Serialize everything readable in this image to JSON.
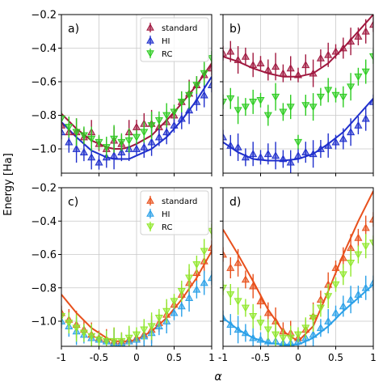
{
  "figure": {
    "ylabel": "Energy [Ha]",
    "xlabel": "α",
    "x_ticks": [
      -1,
      -0.5,
      0,
      0.5,
      1
    ],
    "x_tick_labels": [
      "-1",
      "-0.5",
      "0",
      "0.5",
      "1"
    ],
    "y_ticks": [
      -1.0,
      -0.8,
      -0.6,
      -0.4,
      -0.2
    ],
    "y_tick_labels": [
      "−1.0",
      "−0.8",
      "−0.6",
      "−0.4",
      "−0.2"
    ],
    "colors": {
      "top_standard": "#a0183f",
      "top_HI": "#1f2fcc",
      "top_RC": "#2bcc1f",
      "bottom_standard": "#e8501c",
      "bottom_HI": "#2aa0e8",
      "bottom_RC": "#8fe82a"
    }
  },
  "chart_data": [
    {
      "type": "scatter",
      "panel_label": "a)",
      "xlim": [
        -1,
        1
      ],
      "ylim": [
        -1.1,
        -0.2
      ],
      "grid": true,
      "legend": "top-right",
      "series": [
        {
          "name": "standard",
          "kind": "points",
          "marker": "triangle-up",
          "color": "#a0183f",
          "x": [
            -1.0,
            -0.9,
            -0.8,
            -0.7,
            -0.6,
            -0.5,
            -0.4,
            -0.3,
            -0.2,
            -0.1,
            0.0,
            0.1,
            0.2,
            0.3,
            0.4,
            0.5,
            0.6,
            0.7,
            0.8,
            0.9,
            1.0
          ],
          "y": [
            -0.86,
            -0.9,
            -0.9,
            -0.93,
            -0.9,
            -0.97,
            -1.0,
            -0.95,
            -0.97,
            -0.9,
            -0.87,
            -0.85,
            -0.85,
            -0.87,
            -0.84,
            -0.8,
            -0.72,
            -0.67,
            -0.62,
            -0.56,
            -0.52
          ]
        },
        {
          "name": "HI",
          "kind": "points",
          "marker": "triangle-up",
          "color": "#1f2fcc",
          "x": [
            -1.0,
            -0.9,
            -0.8,
            -0.7,
            -0.6,
            -0.5,
            -0.4,
            -0.3,
            -0.2,
            -0.1,
            0.0,
            0.1,
            0.2,
            0.3,
            0.4,
            0.5,
            0.6,
            0.7,
            0.8,
            0.9,
            1.0
          ],
          "y": [
            -0.9,
            -0.96,
            -1.0,
            -1.02,
            -1.05,
            -1.08,
            -1.05,
            -1.04,
            -1.02,
            -1.0,
            -1.0,
            -0.99,
            -0.96,
            -0.93,
            -0.9,
            -0.86,
            -0.82,
            -0.77,
            -0.72,
            -0.68,
            -0.62
          ]
        },
        {
          "name": "RC",
          "kind": "points",
          "marker": "triangle-down",
          "color": "#2bcc1f",
          "x": [
            -1.0,
            -0.9,
            -0.8,
            -0.7,
            -0.6,
            -0.5,
            -0.4,
            -0.3,
            -0.2,
            -0.1,
            0.0,
            0.1,
            0.2,
            0.3,
            0.4,
            0.5,
            0.6,
            0.7,
            0.8,
            0.9,
            1.0
          ],
          "y": [
            -0.82,
            -0.87,
            -0.9,
            -0.92,
            -0.94,
            -0.96,
            -0.99,
            -0.94,
            -0.96,
            -0.95,
            -0.93,
            -0.9,
            -0.86,
            -0.83,
            -0.8,
            -0.78,
            -0.72,
            -0.68,
            -0.62,
            -0.55,
            -0.46
          ]
        },
        {
          "kind": "line",
          "color": "#a0183f",
          "x": [
            -1.0,
            -0.8,
            -0.6,
            -0.4,
            -0.3,
            -0.2,
            -0.1,
            0.0,
            0.2,
            0.4,
            0.6,
            0.8,
            1.0
          ],
          "y": [
            -0.79,
            -0.88,
            -0.95,
            -0.99,
            -1.0,
            -1.0,
            -0.99,
            -0.97,
            -0.92,
            -0.83,
            -0.73,
            -0.62,
            -0.49
          ]
        },
        {
          "kind": "line",
          "color": "#1f2fcc",
          "x": [
            -1.0,
            -0.8,
            -0.6,
            -0.4,
            -0.3,
            -0.2,
            -0.1,
            0.0,
            0.2,
            0.4,
            0.6,
            0.8,
            1.0
          ],
          "y": [
            -0.84,
            -0.93,
            -1.01,
            -1.05,
            -1.06,
            -1.06,
            -1.06,
            -1.04,
            -1.0,
            -0.93,
            -0.83,
            -0.71,
            -0.57
          ]
        }
      ]
    },
    {
      "type": "scatter",
      "panel_label": "b)",
      "xlim": [
        -1,
        1
      ],
      "ylim": [
        -1.1,
        -0.2
      ],
      "grid": true,
      "series": [
        {
          "name": "standard",
          "kind": "points",
          "marker": "triangle-up",
          "color": "#a0183f",
          "x": [
            -1.0,
            -0.9,
            -0.8,
            -0.7,
            -0.6,
            -0.5,
            -0.4,
            -0.3,
            -0.2,
            -0.1,
            0.0,
            0.1,
            0.2,
            0.3,
            0.4,
            0.5,
            0.6,
            0.7,
            0.8,
            0.9,
            1.0
          ],
          "y": [
            -0.43,
            -0.42,
            -0.47,
            -0.45,
            -0.5,
            -0.49,
            -0.53,
            -0.51,
            -0.55,
            -0.52,
            -0.56,
            -0.5,
            -0.55,
            -0.46,
            -0.44,
            -0.42,
            -0.4,
            -0.36,
            -0.33,
            -0.3,
            -0.26
          ]
        },
        {
          "name": "HI",
          "kind": "points",
          "marker": "triangle-up",
          "color": "#1f2fcc",
          "x": [
            -1.0,
            -0.9,
            -0.8,
            -0.7,
            -0.6,
            -0.5,
            -0.4,
            -0.3,
            -0.2,
            -0.1,
            0.0,
            0.1,
            0.2,
            0.3,
            0.4,
            0.5,
            0.6,
            0.7,
            0.8,
            0.9,
            1.0
          ],
          "y": [
            -0.93,
            -0.98,
            -0.99,
            -1.05,
            -1.03,
            -1.05,
            -1.03,
            -1.04,
            -1.06,
            -1.08,
            -1.04,
            -1.02,
            -1.03,
            -1.0,
            -0.98,
            -0.96,
            -0.94,
            -0.9,
            -0.86,
            -0.82,
            -0.72
          ]
        },
        {
          "name": "RC",
          "kind": "points",
          "marker": "triangle-down",
          "color": "#2bcc1f",
          "x": [
            -1.0,
            -0.9,
            -0.8,
            -0.7,
            -0.6,
            -0.5,
            -0.4,
            -0.3,
            -0.2,
            -0.1,
            0.0,
            0.1,
            0.2,
            0.3,
            0.4,
            0.5,
            0.6,
            0.7,
            0.8,
            0.9,
            1.0
          ],
          "y": [
            -0.72,
            -0.7,
            -0.77,
            -0.75,
            -0.72,
            -0.71,
            -0.8,
            -0.69,
            -0.78,
            -0.75,
            -0.96,
            -0.74,
            -0.75,
            -0.69,
            -0.65,
            -0.68,
            -0.69,
            -0.63,
            -0.57,
            -0.54,
            -0.45
          ]
        },
        {
          "kind": "line",
          "color": "#a0183f",
          "x": [
            -1.0,
            -0.8,
            -0.6,
            -0.4,
            -0.2,
            0.0,
            0.2,
            0.4,
            0.6,
            0.8,
            1.0
          ],
          "y": [
            -0.45,
            -0.48,
            -0.52,
            -0.55,
            -0.57,
            -0.57,
            -0.55,
            -0.49,
            -0.4,
            -0.3,
            -0.2
          ]
        },
        {
          "kind": "line",
          "color": "#1f2fcc",
          "x": [
            -1.0,
            -0.8,
            -0.6,
            -0.4,
            -0.2,
            0.0,
            0.2,
            0.4,
            0.6,
            0.8,
            1.0
          ],
          "y": [
            -0.96,
            -1.02,
            -1.06,
            -1.07,
            -1.07,
            -1.06,
            -1.03,
            -0.97,
            -0.9,
            -0.8,
            -0.7
          ]
        }
      ]
    },
    {
      "type": "scatter",
      "panel_label": "c)",
      "xlim": [
        -1,
        1
      ],
      "ylim": [
        -1.15,
        -0.2
      ],
      "grid": true,
      "legend": "top-right",
      "series": [
        {
          "name": "standard",
          "kind": "points",
          "marker": "triangle-up",
          "color": "#e8501c",
          "x": [
            -1.0,
            -0.9,
            -0.8,
            -0.7,
            -0.6,
            -0.5,
            -0.4,
            -0.3,
            -0.2,
            -0.1,
            0.0,
            0.1,
            0.2,
            0.3,
            0.4,
            0.5,
            0.6,
            0.7,
            0.8,
            0.9,
            1.0
          ],
          "y": [
            -0.95,
            -0.99,
            -1.02,
            -1.05,
            -1.08,
            -1.1,
            -1.11,
            -1.12,
            -1.12,
            -1.11,
            -1.1,
            -1.08,
            -1.05,
            -1.01,
            -0.96,
            -0.9,
            -0.84,
            -0.77,
            -0.71,
            -0.64,
            -0.56
          ]
        },
        {
          "name": "HI",
          "kind": "points",
          "marker": "triangle-up",
          "color": "#2aa0e8",
          "x": [
            -1.0,
            -0.9,
            -0.8,
            -0.7,
            -0.6,
            -0.5,
            -0.4,
            -0.3,
            -0.2,
            -0.1,
            0.0,
            0.1,
            0.2,
            0.3,
            0.4,
            0.5,
            0.6,
            0.7,
            0.8,
            0.9,
            1.0
          ],
          "y": [
            -1.0,
            -1.03,
            -1.06,
            -1.08,
            -1.1,
            -1.11,
            -1.12,
            -1.13,
            -1.13,
            -1.12,
            -1.11,
            -1.09,
            -1.07,
            -1.03,
            -1.0,
            -0.95,
            -0.91,
            -0.86,
            -0.81,
            -0.77,
            -0.74
          ]
        },
        {
          "name": "RC",
          "kind": "points",
          "marker": "triangle-down",
          "color": "#8fe82a",
          "x": [
            -1.0,
            -0.9,
            -0.8,
            -0.7,
            -0.6,
            -0.5,
            -0.4,
            -0.3,
            -0.2,
            -0.1,
            0.0,
            0.1,
            0.2,
            0.3,
            0.4,
            0.5,
            0.6,
            0.7,
            0.8,
            0.9,
            1.0
          ],
          "y": [
            -0.97,
            -1.01,
            -1.04,
            -1.07,
            -1.09,
            -1.11,
            -1.12,
            -1.12,
            -1.12,
            -1.1,
            -1.08,
            -1.05,
            -1.03,
            -0.98,
            -0.94,
            -0.88,
            -0.82,
            -0.74,
            -0.66,
            -0.58,
            -0.46
          ]
        },
        {
          "kind": "line",
          "color": "#e8501c",
          "x": [
            -1.0,
            -0.8,
            -0.6,
            -0.4,
            -0.3,
            -0.2,
            -0.1,
            0.0,
            0.2,
            0.4,
            0.6,
            0.8,
            1.0
          ],
          "y": [
            -0.84,
            -0.95,
            -1.04,
            -1.1,
            -1.12,
            -1.12,
            -1.12,
            -1.11,
            -1.06,
            -0.98,
            -0.87,
            -0.74,
            -0.58
          ]
        }
      ]
    },
    {
      "type": "scatter",
      "panel_label": "d)",
      "xlim": [
        -1,
        1
      ],
      "ylim": [
        -1.15,
        -0.2
      ],
      "grid": true,
      "series": [
        {
          "name": "standard",
          "kind": "points",
          "marker": "triangle-up",
          "color": "#e8501c",
          "x": [
            -1.0,
            -0.9,
            -0.8,
            -0.7,
            -0.6,
            -0.5,
            -0.4,
            -0.3,
            -0.2,
            -0.1,
            0.0,
            0.1,
            0.2,
            0.3,
            0.4,
            0.5,
            0.6,
            0.7,
            0.8,
            0.9,
            1.0
          ],
          "y": [
            -0.6,
            -0.68,
            -0.65,
            -0.75,
            -0.79,
            -0.88,
            -0.95,
            -1.0,
            -1.06,
            -1.07,
            -1.1,
            -1.05,
            -0.97,
            -0.87,
            -0.78,
            -0.68,
            -0.62,
            -0.56,
            -0.5,
            -0.44,
            -0.39
          ]
        },
        {
          "name": "HI",
          "kind": "points",
          "marker": "triangle-up",
          "color": "#2aa0e8",
          "x": [
            -1.0,
            -0.9,
            -0.8,
            -0.7,
            -0.6,
            -0.5,
            -0.4,
            -0.3,
            -0.2,
            -0.1,
            0.0,
            0.1,
            0.2,
            0.3,
            0.4,
            0.5,
            0.6,
            0.7,
            0.8,
            0.9,
            1.0
          ],
          "y": [
            -0.98,
            -1.02,
            -1.05,
            -1.07,
            -1.1,
            -1.11,
            -1.12,
            -1.12,
            -1.13,
            -1.13,
            -1.12,
            -1.1,
            -1.08,
            -1.04,
            -1.0,
            -0.95,
            -0.91,
            -0.87,
            -0.84,
            -0.8,
            -0.77
          ]
        },
        {
          "name": "RC",
          "kind": "points",
          "marker": "triangle-down",
          "color": "#8fe82a",
          "x": [
            -1.0,
            -0.9,
            -0.8,
            -0.7,
            -0.6,
            -0.5,
            -0.4,
            -0.3,
            -0.2,
            -0.1,
            0.0,
            0.1,
            0.2,
            0.3,
            0.4,
            0.5,
            0.6,
            0.7,
            0.8,
            0.9,
            1.0
          ],
          "y": [
            -0.8,
            -0.84,
            -0.88,
            -0.92,
            -0.97,
            -1.01,
            -1.05,
            -1.08,
            -1.1,
            -1.1,
            -1.08,
            -1.04,
            -0.98,
            -0.92,
            -0.85,
            -0.78,
            -0.72,
            -0.65,
            -0.6,
            -0.55,
            -0.53
          ]
        },
        {
          "kind": "line",
          "color": "#e8501c",
          "x": [
            -1.0,
            -0.8,
            -0.6,
            -0.4,
            -0.2,
            0.0,
            0.2,
            0.4,
            0.6,
            0.8,
            1.0
          ],
          "y": [
            -0.45,
            -0.6,
            -0.76,
            -0.93,
            -1.06,
            -1.12,
            -1.03,
            -0.82,
            -0.6,
            -0.4,
            -0.22
          ]
        },
        {
          "kind": "line",
          "color": "#2aa0e8",
          "x": [
            -1.0,
            -0.8,
            -0.6,
            -0.4,
            -0.2,
            0.0,
            0.2,
            0.4,
            0.6,
            0.8,
            1.0
          ],
          "y": [
            -0.98,
            -1.05,
            -1.1,
            -1.13,
            -1.14,
            -1.14,
            -1.1,
            -1.03,
            -0.94,
            -0.86,
            -0.78
          ]
        }
      ]
    }
  ]
}
